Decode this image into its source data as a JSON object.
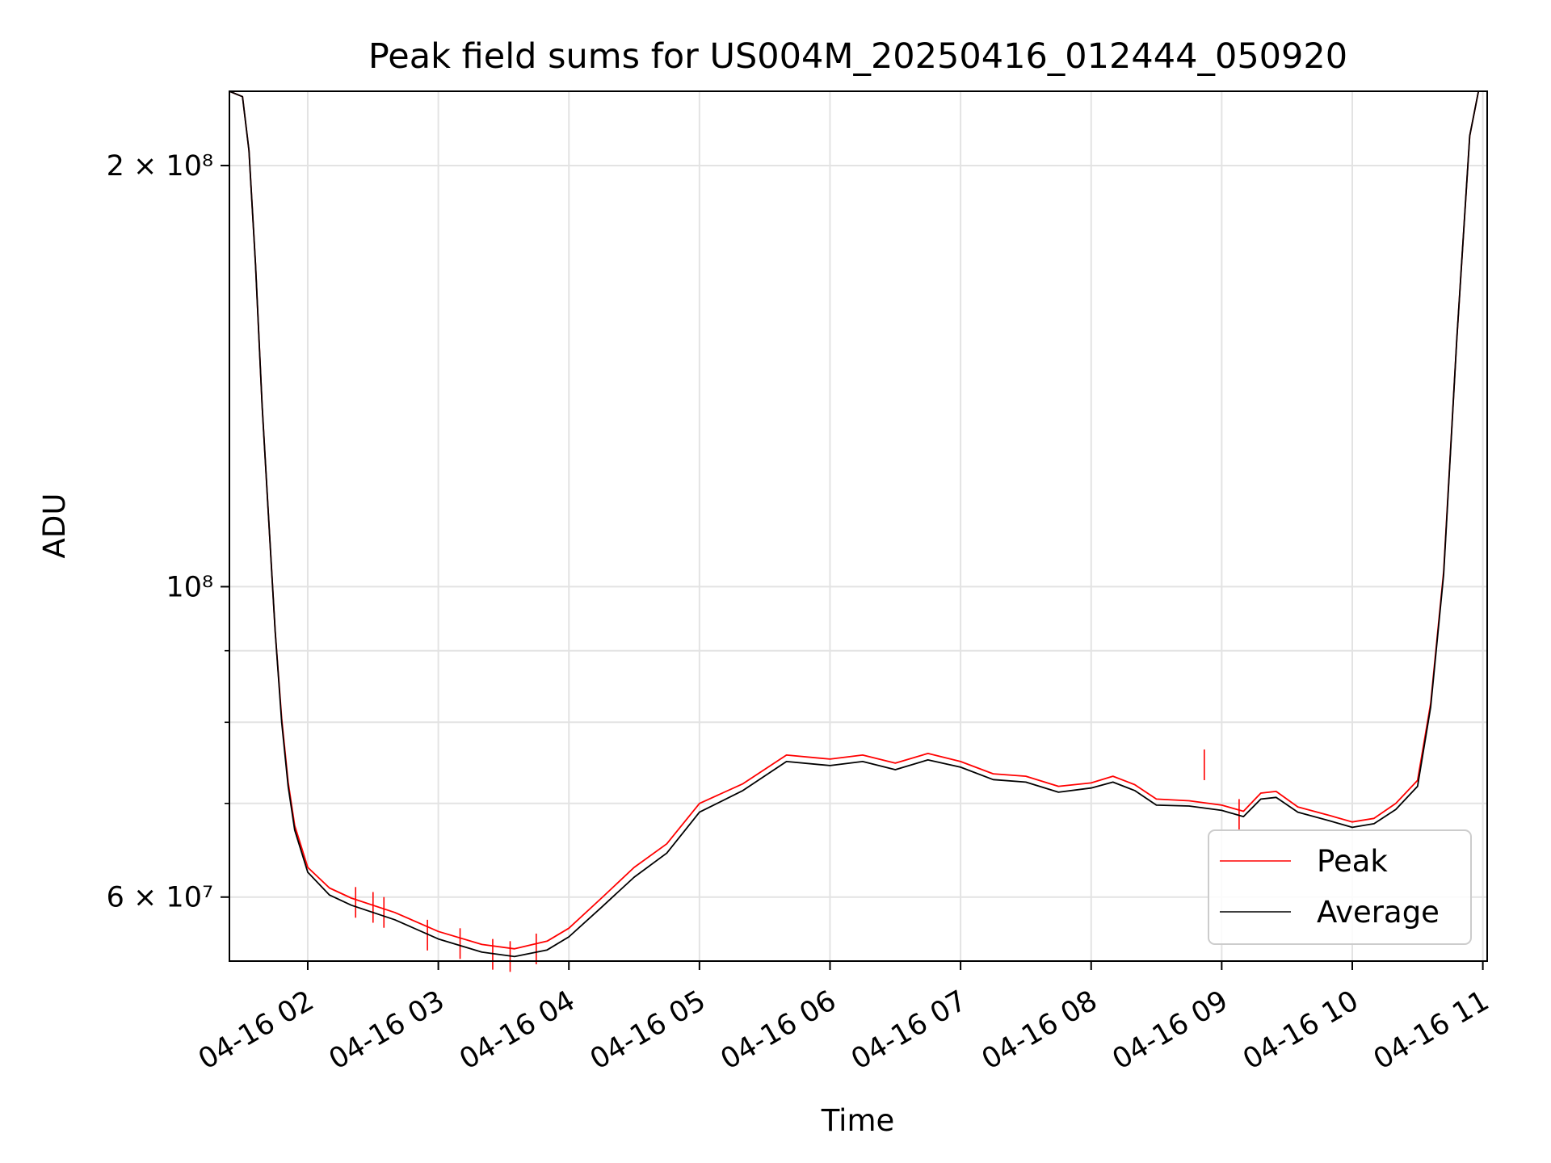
{
  "chart_data": {
    "type": "line",
    "title": "Peak field sums for US004M_20250416_012444_050920",
    "xlabel": "Time",
    "ylabel": "ADU",
    "yscale": "log",
    "grid": true,
    "legend_position": "lower right",
    "x_range": [
      "2025-04-16T01:24",
      "2025-04-16T11:02"
    ],
    "ylim": [
      54000000,
      226000000
    ],
    "x_ticks": [
      {
        "t": "2025-04-16T02:00",
        "label": "04-16 02"
      },
      {
        "t": "2025-04-16T03:00",
        "label": "04-16 03"
      },
      {
        "t": "2025-04-16T04:00",
        "label": "04-16 04"
      },
      {
        "t": "2025-04-16T05:00",
        "label": "04-16 05"
      },
      {
        "t": "2025-04-16T06:00",
        "label": "04-16 06"
      },
      {
        "t": "2025-04-16T07:00",
        "label": "04-16 07"
      },
      {
        "t": "2025-04-16T08:00",
        "label": "04-16 08"
      },
      {
        "t": "2025-04-16T09:00",
        "label": "04-16 09"
      },
      {
        "t": "2025-04-16T10:00",
        "label": "04-16 10"
      },
      {
        "t": "2025-04-16T11:00",
        "label": "04-16 11"
      }
    ],
    "y_major_ticks": [
      {
        "value": 60000000,
        "label": "6 × 10⁷"
      },
      {
        "value": 100000000,
        "label": "10⁸"
      },
      {
        "value": 200000000,
        "label": "2 × 10⁸"
      }
    ],
    "y_minor_ticks": [
      70000000,
      80000000,
      90000000
    ],
    "series": [
      {
        "name": "Average",
        "color": "#000000",
        "points": [
          [
            "2025-04-16T01:24",
            226000000
          ],
          [
            "2025-04-16T01:30",
            224000000
          ],
          [
            "2025-04-16T01:33",
            205000000
          ],
          [
            "2025-04-16T01:36",
            170000000
          ],
          [
            "2025-04-16T01:39",
            135000000
          ],
          [
            "2025-04-16T01:42",
            112000000
          ],
          [
            "2025-04-16T01:45",
            93000000
          ],
          [
            "2025-04-16T01:48",
            80000000
          ],
          [
            "2025-04-16T01:51",
            72000000
          ],
          [
            "2025-04-16T01:54",
            67000000
          ],
          [
            "2025-04-16T02:00",
            62500000
          ],
          [
            "2025-04-16T02:10",
            60200000
          ],
          [
            "2025-04-16T02:20",
            59200000
          ],
          [
            "2025-04-16T02:40",
            57800000
          ],
          [
            "2025-04-16T03:00",
            56000000
          ],
          [
            "2025-04-16T03:20",
            54800000
          ],
          [
            "2025-04-16T03:35",
            54400000
          ],
          [
            "2025-04-16T03:50",
            55000000
          ],
          [
            "2025-04-16T04:00",
            56200000
          ],
          [
            "2025-04-16T04:15",
            59000000
          ],
          [
            "2025-04-16T04:30",
            62000000
          ],
          [
            "2025-04-16T04:45",
            64500000
          ],
          [
            "2025-04-16T05:00",
            69000000
          ],
          [
            "2025-04-16T05:20",
            71500000
          ],
          [
            "2025-04-16T05:40",
            75000000
          ],
          [
            "2025-04-16T06:00",
            74500000
          ],
          [
            "2025-04-16T06:15",
            75000000
          ],
          [
            "2025-04-16T06:30",
            74000000
          ],
          [
            "2025-04-16T06:45",
            75200000
          ],
          [
            "2025-04-16T07:00",
            74300000
          ],
          [
            "2025-04-16T07:15",
            72800000
          ],
          [
            "2025-04-16T07:30",
            72500000
          ],
          [
            "2025-04-16T07:45",
            71300000
          ],
          [
            "2025-04-16T08:00",
            71800000
          ],
          [
            "2025-04-16T08:10",
            72500000
          ],
          [
            "2025-04-16T08:20",
            71500000
          ],
          [
            "2025-04-16T08:30",
            69800000
          ],
          [
            "2025-04-16T08:45",
            69700000
          ],
          [
            "2025-04-16T09:00",
            69200000
          ],
          [
            "2025-04-16T09:10",
            68500000
          ],
          [
            "2025-04-16T09:18",
            70500000
          ],
          [
            "2025-04-16T09:25",
            70700000
          ],
          [
            "2025-04-16T09:35",
            69000000
          ],
          [
            "2025-04-16T09:50",
            68000000
          ],
          [
            "2025-04-16T10:00",
            67300000
          ],
          [
            "2025-04-16T10:10",
            67700000
          ],
          [
            "2025-04-16T10:20",
            69300000
          ],
          [
            "2025-04-16T10:30",
            72000000
          ],
          [
            "2025-04-16T10:36",
            82000000
          ],
          [
            "2025-04-16T10:42",
            102000000
          ],
          [
            "2025-04-16T10:48",
            150000000
          ],
          [
            "2025-04-16T10:54",
            210000000
          ],
          [
            "2025-04-16T10:58",
            226000000
          ],
          [
            "2025-04-16T11:02",
            226000000
          ]
        ]
      },
      {
        "name": "Peak",
        "color": "#ff0000",
        "points": [
          [
            "2025-04-16T01:24",
            226000000
          ],
          [
            "2025-04-16T01:30",
            224000000
          ],
          [
            "2025-04-16T01:33",
            205000000
          ],
          [
            "2025-04-16T01:36",
            170000000
          ],
          [
            "2025-04-16T01:39",
            135000000
          ],
          [
            "2025-04-16T01:42",
            112000000
          ],
          [
            "2025-04-16T01:45",
            93000000
          ],
          [
            "2025-04-16T01:48",
            80500000
          ],
          [
            "2025-04-16T01:51",
            72500000
          ],
          [
            "2025-04-16T01:54",
            67500000
          ],
          [
            "2025-04-16T02:00",
            63000000
          ],
          [
            "2025-04-16T02:10",
            60900000
          ],
          [
            "2025-04-16T02:20",
            59900000
          ],
          [
            "2025-04-16T02:40",
            58500000
          ],
          [
            "2025-04-16T03:00",
            56700000
          ],
          [
            "2025-04-16T03:20",
            55500000
          ],
          [
            "2025-04-16T03:35",
            55100000
          ],
          [
            "2025-04-16T03:50",
            55800000
          ],
          [
            "2025-04-16T04:00",
            57000000
          ],
          [
            "2025-04-16T04:15",
            59900000
          ],
          [
            "2025-04-16T04:30",
            63000000
          ],
          [
            "2025-04-16T04:45",
            65500000
          ],
          [
            "2025-04-16T05:00",
            70000000
          ],
          [
            "2025-04-16T05:20",
            72300000
          ],
          [
            "2025-04-16T05:40",
            75800000
          ],
          [
            "2025-04-16T06:00",
            75300000
          ],
          [
            "2025-04-16T06:15",
            75800000
          ],
          [
            "2025-04-16T06:30",
            74800000
          ],
          [
            "2025-04-16T06:45",
            76000000
          ],
          [
            "2025-04-16T07:00",
            75000000
          ],
          [
            "2025-04-16T07:15",
            73500000
          ],
          [
            "2025-04-16T07:30",
            73200000
          ],
          [
            "2025-04-16T07:45",
            72000000
          ],
          [
            "2025-04-16T08:00",
            72400000
          ],
          [
            "2025-04-16T08:10",
            73200000
          ],
          [
            "2025-04-16T08:20",
            72200000
          ],
          [
            "2025-04-16T08:30",
            70500000
          ],
          [
            "2025-04-16T08:45",
            70300000
          ],
          [
            "2025-04-16T09:00",
            69800000
          ],
          [
            "2025-04-16T09:10",
            69100000
          ],
          [
            "2025-04-16T09:18",
            71200000
          ],
          [
            "2025-04-16T09:25",
            71400000
          ],
          [
            "2025-04-16T09:35",
            69600000
          ],
          [
            "2025-04-16T09:50",
            68600000
          ],
          [
            "2025-04-16T10:00",
            67900000
          ],
          [
            "2025-04-16T10:10",
            68300000
          ],
          [
            "2025-04-16T10:20",
            70000000
          ],
          [
            "2025-04-16T10:30",
            72700000
          ],
          [
            "2025-04-16T10:36",
            82500000
          ],
          [
            "2025-04-16T10:42",
            102500000
          ],
          [
            "2025-04-16T10:48",
            150000000
          ],
          [
            "2025-04-16T10:54",
            210000000
          ],
          [
            "2025-04-16T10:58",
            226000000
          ],
          [
            "2025-04-16T11:02",
            226000000
          ]
        ],
        "spikes": [
          [
            "2025-04-16T02:22",
            61000000
          ],
          [
            "2025-04-16T02:30",
            60500000
          ],
          [
            "2025-04-16T02:35",
            60000000
          ],
          [
            "2025-04-16T02:55",
            57800000
          ],
          [
            "2025-04-16T03:10",
            57000000
          ],
          [
            "2025-04-16T03:25",
            56000000
          ],
          [
            "2025-04-16T03:33",
            55800000
          ],
          [
            "2025-04-16T03:45",
            56500000
          ],
          [
            "2025-04-16T08:52",
            76500000
          ],
          [
            "2025-04-16T09:08",
            70500000
          ]
        ]
      }
    ]
  }
}
